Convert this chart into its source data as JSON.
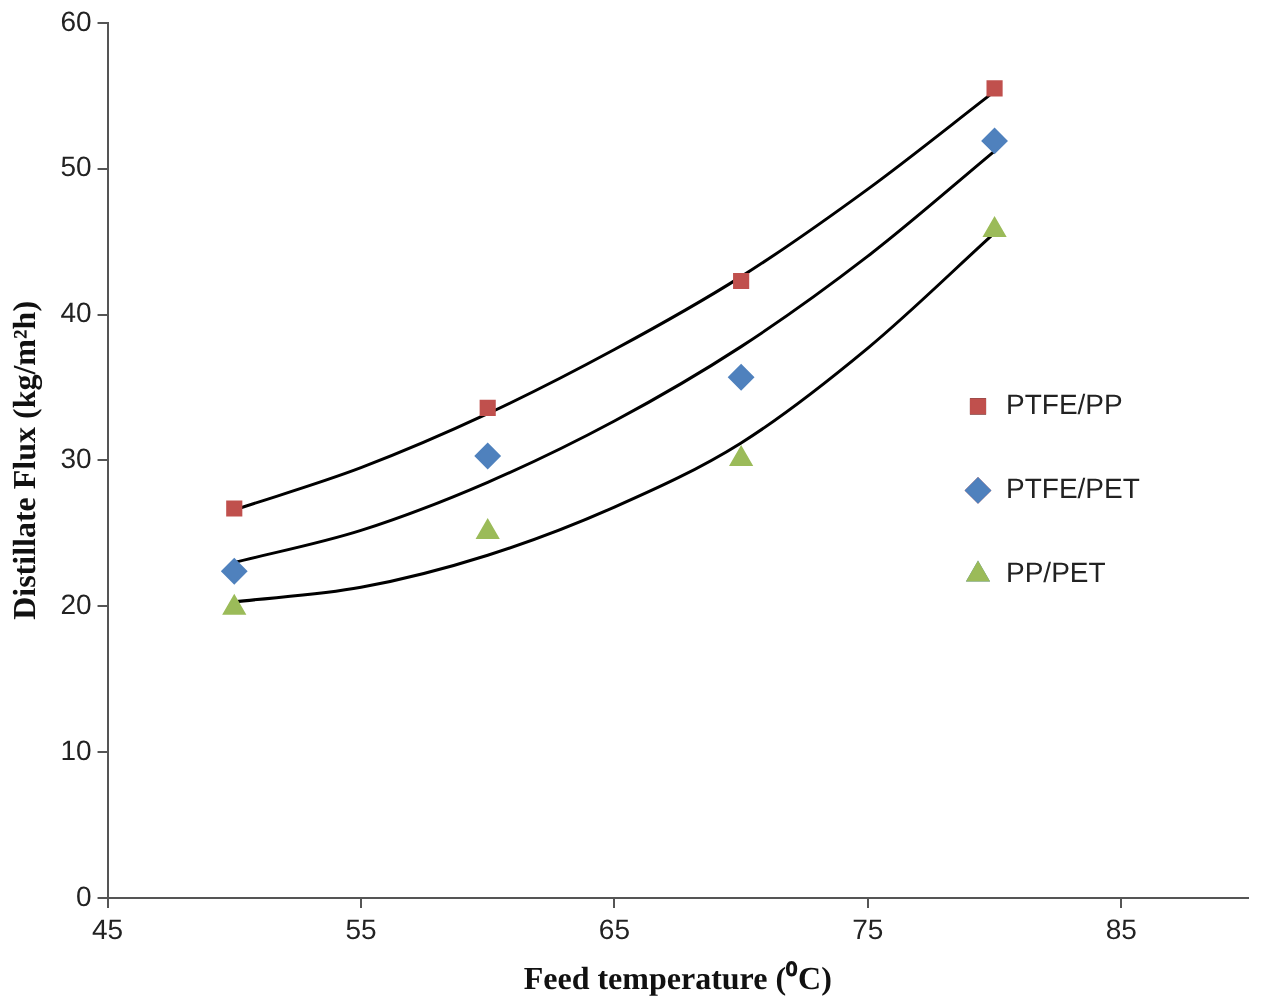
{
  "chart_data": {
    "type": "scatter",
    "xlabel": "Feed temperature (⁰C)",
    "ylabel": "Distillate Flux (kg/m²h)",
    "xlim": [
      45,
      90
    ],
    "xticks": [
      45,
      55,
      65,
      75,
      85
    ],
    "ylim": [
      0,
      60
    ],
    "yticks": [
      0,
      10,
      20,
      30,
      40,
      50,
      60
    ],
    "grid": false,
    "legend": "right",
    "x": [
      50,
      60,
      70,
      80
    ],
    "series": [
      {
        "name": "PTFE/PP",
        "color": "#c0504d",
        "marker": "square",
        "values": [
          26.7,
          33.6,
          42.3,
          55.5
        ]
      },
      {
        "name": "PTFE/PET",
        "color": "#4f81bd",
        "marker": "diamond",
        "values": [
          22.4,
          30.3,
          35.7,
          51.9
        ]
      },
      {
        "name": "PP/PET",
        "color": "#9bbb59",
        "marker": "triangle",
        "values": [
          19.9,
          25.1,
          30.1,
          45.8
        ]
      },
      {
        "type": "line",
        "color": "#000000",
        "marker": "none",
        "x": [
          50,
          55,
          60,
          65,
          70,
          75,
          80
        ],
        "values": [
          26.6,
          29.5,
          33.2,
          37.6,
          42.6,
          48.6,
          55.3
        ]
      },
      {
        "type": "line",
        "color": "#000000",
        "marker": "none",
        "x": [
          50,
          55,
          60,
          65,
          70,
          75,
          80
        ],
        "values": [
          23.0,
          25.2,
          28.5,
          32.7,
          37.8,
          44.0,
          51.2
        ]
      },
      {
        "type": "line",
        "color": "#000000",
        "marker": "none",
        "x": [
          50,
          55,
          60,
          65,
          70,
          75,
          80
        ],
        "values": [
          20.3,
          21.3,
          23.5,
          26.8,
          31.2,
          37.7,
          45.6
        ]
      }
    ]
  }
}
